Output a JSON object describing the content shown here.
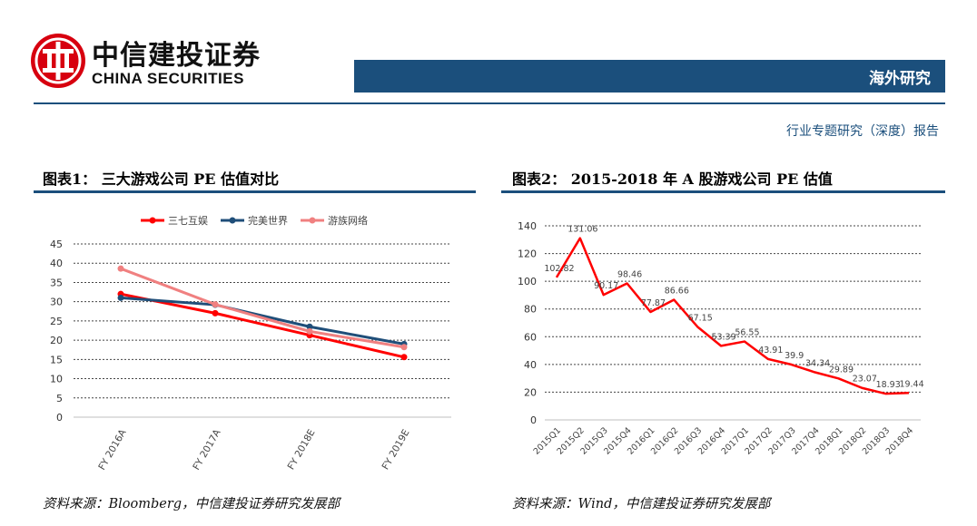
{
  "header": {
    "logo_cn": "中信建投证券",
    "logo_en": "CHINA SECURITIES",
    "section": "海外研究",
    "report_type": "行业专题研究（深度）报告"
  },
  "colors": {
    "brand_blue": "#1b4f7c",
    "logo_red": "#d7000f",
    "series_red": "#ff0000",
    "series_navy": "#1f4e79",
    "series_pink": "#f08080"
  },
  "panels": [
    {
      "title": "图表1：  三大游戏公司 PE 估值对比",
      "source": "资料来源：Bloomberg，中信建投证券研究发展部"
    },
    {
      "title": "图表2：  2015-2018 年 A 股游戏公司 PE 估值",
      "source": "资料来源：Wind，中信建投证券研究发展部"
    }
  ],
  "chart_data": [
    {
      "type": "line",
      "title": "",
      "categories": [
        "FY 2016A",
        "FY 2017A",
        "FY 2018E",
        "FY 2019E"
      ],
      "series": [
        {
          "name": "三七互娱",
          "color": "#ff0000",
          "values": [
            32.0,
            27.0,
            21.3,
            15.6
          ]
        },
        {
          "name": "完美世界",
          "color": "#1f4e79",
          "values": [
            31.0,
            29.2,
            23.5,
            19.0
          ]
        },
        {
          "name": "游族网络",
          "color": "#f08080",
          "values": [
            38.6,
            29.3,
            22.3,
            18.2
          ]
        }
      ],
      "ylim": [
        0,
        45
      ],
      "yticks": [
        0,
        5,
        10,
        15,
        20,
        25,
        30,
        35,
        40,
        45
      ],
      "legend": "top",
      "grid": "dashed-horizontal"
    },
    {
      "type": "line",
      "title": "",
      "categories": [
        "2015Q1",
        "2015Q2",
        "2015Q3",
        "2015Q4",
        "2016Q1",
        "2016Q2",
        "2016Q3",
        "2016Q4",
        "2017Q1",
        "2017Q2",
        "2017Q3",
        "2017Q4",
        "2018Q1",
        "2018Q2",
        "2018Q3",
        "2018Q4"
      ],
      "series": [
        {
          "name": "",
          "color": "#ff0000",
          "values": [
            102.82,
            131.06,
            90.17,
            98.46,
            77.87,
            86.66,
            67.15,
            53.39,
            56.55,
            43.91,
            39.9,
            34.34,
            29.89,
            23.07,
            18.93,
            19.44
          ],
          "labels": [
            "102.82",
            "131.06",
            "90.17",
            "98.46",
            "77.87",
            "86.66",
            "67.15",
            "53.39",
            "56.55",
            "43.91",
            "39.9",
            "34.34",
            "29.89",
            "23.07",
            "18.93",
            "19.44"
          ]
        }
      ],
      "ylim": [
        0,
        140
      ],
      "yticks": [
        0,
        20,
        40,
        60,
        80,
        100,
        120,
        140
      ],
      "grid": "dashed-horizontal"
    }
  ]
}
